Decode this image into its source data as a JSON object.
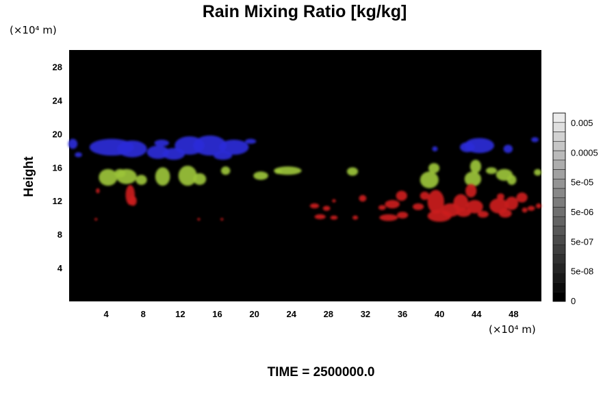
{
  "chart_data": {
    "type": "heatmap",
    "title": "Rain Mixing Ratio [kg/kg]",
    "ylabel": "Height",
    "x_unit": "(×10⁴ m)",
    "y_unit": "(×10⁴ m)",
    "x_ticks": [
      4,
      8,
      12,
      16,
      20,
      24,
      28,
      32,
      36,
      40,
      44,
      48
    ],
    "y_ticks": [
      4,
      8,
      12,
      16,
      20,
      24,
      28
    ],
    "xlim": [
      0,
      51
    ],
    "ylim": [
      0,
      30
    ],
    "background": "#000000",
    "colorbar": {
      "labels": [
        "0.005",
        "0.0005",
        "5e-05",
        "5e-06",
        "5e-07",
        "5e-08",
        "0"
      ],
      "levels": 20
    },
    "regions": [
      {
        "color": "#2a2ad8",
        "blobs": [
          [
            0.4,
            18.8,
            0.5,
            0.6
          ],
          [
            4.6,
            18.4,
            2.4,
            1.0
          ],
          [
            6.8,
            18.2,
            1.6,
            1.0
          ],
          [
            9.6,
            17.8,
            1.2,
            0.8
          ],
          [
            11.3,
            17.6,
            1.2,
            0.7
          ],
          [
            13.0,
            18.6,
            1.6,
            1.1
          ],
          [
            15.2,
            18.6,
            1.8,
            1.2
          ],
          [
            17.8,
            18.4,
            1.6,
            0.9
          ],
          [
            1.0,
            17.5,
            0.4,
            0.3
          ],
          [
            10.0,
            18.9,
            0.8,
            0.4
          ],
          [
            16.6,
            17.4,
            1.0,
            0.5
          ],
          [
            19.6,
            19.1,
            0.6,
            0.3
          ],
          [
            39.5,
            18.2,
            0.3,
            0.3
          ],
          [
            44.3,
            18.6,
            1.6,
            0.9
          ],
          [
            43.0,
            18.4,
            0.8,
            0.6
          ],
          [
            47.4,
            18.2,
            0.5,
            0.5
          ],
          [
            50.3,
            19.3,
            0.4,
            0.3
          ]
        ]
      },
      {
        "color": "#9cc43a",
        "blobs": [
          [
            4.2,
            14.8,
            1.0,
            1.0
          ],
          [
            5.5,
            15.3,
            0.6,
            0.5
          ],
          [
            6.2,
            14.9,
            1.1,
            0.9
          ],
          [
            7.8,
            14.5,
            0.6,
            0.6
          ],
          [
            10.1,
            14.9,
            0.8,
            1.1
          ],
          [
            12.8,
            15.0,
            1.0,
            1.2
          ],
          [
            14.1,
            14.6,
            0.7,
            0.7
          ],
          [
            16.9,
            15.6,
            0.5,
            0.5
          ],
          [
            20.7,
            15.0,
            0.8,
            0.5
          ],
          [
            22.6,
            15.5,
            0.4,
            0.3
          ],
          [
            23.6,
            15.6,
            1.5,
            0.5
          ],
          [
            30.6,
            15.5,
            0.6,
            0.5
          ],
          [
            38.9,
            14.5,
            1.0,
            1.0
          ],
          [
            39.4,
            15.9,
            0.6,
            0.6
          ],
          [
            43.6,
            14.6,
            0.9,
            0.9
          ],
          [
            43.9,
            16.1,
            0.6,
            0.8
          ],
          [
            45.6,
            15.6,
            0.6,
            0.4
          ],
          [
            47.0,
            15.1,
            0.9,
            0.7
          ],
          [
            47.8,
            14.5,
            0.5,
            0.6
          ],
          [
            50.6,
            15.4,
            0.4,
            0.4
          ]
        ]
      },
      {
        "color": "#cc1b1b",
        "blobs": [
          [
            6.6,
            12.7,
            0.5,
            1.2
          ],
          [
            6.9,
            12.0,
            0.4,
            0.6
          ],
          [
            3.1,
            13.2,
            0.2,
            0.3
          ],
          [
            2.9,
            9.8,
            0.15,
            0.15
          ],
          [
            14.0,
            9.8,
            0.15,
            0.15
          ],
          [
            16.5,
            9.8,
            0.15,
            0.15
          ],
          [
            26.5,
            11.4,
            0.5,
            0.3
          ],
          [
            27.8,
            11.1,
            0.4,
            0.3
          ],
          [
            27.1,
            10.1,
            0.6,
            0.3
          ],
          [
            28.6,
            10.0,
            0.4,
            0.25
          ],
          [
            28.6,
            12.0,
            0.2,
            0.2
          ],
          [
            31.7,
            12.3,
            0.4,
            0.4
          ],
          [
            30.9,
            10.0,
            0.3,
            0.25
          ],
          [
            33.8,
            11.2,
            0.4,
            0.3
          ],
          [
            34.9,
            11.6,
            0.8,
            0.5
          ],
          [
            35.9,
            12.6,
            0.6,
            0.6
          ],
          [
            34.5,
            10.0,
            1.0,
            0.4
          ],
          [
            36.0,
            10.3,
            0.6,
            0.4
          ],
          [
            37.7,
            11.3,
            0.6,
            0.4
          ],
          [
            38.4,
            12.6,
            0.5,
            0.5
          ],
          [
            39.6,
            11.9,
            0.9,
            1.4
          ],
          [
            40.0,
            10.2,
            1.3,
            0.7
          ],
          [
            41.2,
            10.9,
            1.0,
            0.8
          ],
          [
            42.3,
            11.8,
            0.8,
            1.0
          ],
          [
            43.4,
            13.2,
            0.6,
            0.8
          ],
          [
            43.8,
            11.3,
            0.9,
            0.8
          ],
          [
            42.6,
            10.6,
            0.8,
            0.5
          ],
          [
            44.7,
            10.4,
            0.6,
            0.4
          ],
          [
            46.4,
            11.4,
            1.0,
            0.9
          ],
          [
            47.8,
            11.7,
            0.7,
            0.8
          ],
          [
            48.9,
            12.4,
            0.6,
            0.6
          ],
          [
            47.1,
            10.5,
            0.7,
            0.5
          ],
          [
            46.6,
            12.5,
            0.4,
            0.4
          ],
          [
            49.9,
            11.1,
            0.4,
            0.3
          ],
          [
            50.7,
            11.4,
            0.3,
            0.3
          ],
          [
            49.2,
            10.9,
            0.3,
            0.3
          ]
        ]
      }
    ]
  },
  "footer": {
    "time_label": "TIME = 2500000.0"
  }
}
